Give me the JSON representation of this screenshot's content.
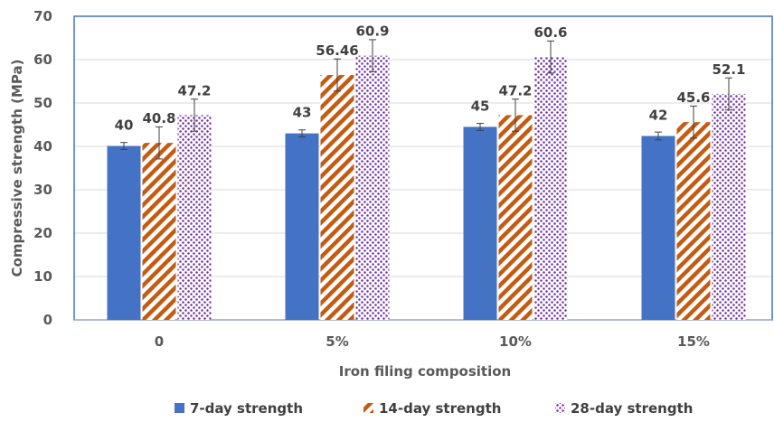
{
  "chart_data": {
    "type": "bar",
    "xlabel": "Iron filing composition",
    "ylabel": "Compressive strength (MPa)",
    "categories": [
      "0",
      "5%",
      "10%",
      "15%"
    ],
    "ylim": [
      0,
      70
    ],
    "yticks": [
      0,
      10,
      20,
      30,
      40,
      50,
      60,
      70
    ],
    "grid": true,
    "legend_position": "bottom",
    "series": [
      {
        "name": "7-day strength",
        "values": [
          40.1,
          43.0,
          44.5,
          42.4
        ],
        "labels": [
          "40",
          "43",
          "45",
          "42"
        ],
        "error": [
          0.8,
          0.8,
          0.8,
          0.9
        ],
        "color": "#4472c4",
        "pattern": "solid"
      },
      {
        "name": "14-day strength",
        "values": [
          40.8,
          56.46,
          47.2,
          45.6
        ],
        "labels": [
          "40.8",
          "56.46",
          "47.2",
          "45.6"
        ],
        "error": [
          3.7,
          3.7,
          3.7,
          3.7
        ],
        "color": "#c55a11",
        "pattern": "diagonal-stripes"
      },
      {
        "name": "28-day strength",
        "values": [
          47.2,
          60.9,
          60.6,
          52.1
        ],
        "labels": [
          "47.2",
          "60.9",
          "60.6",
          "52.1"
        ],
        "error": [
          3.7,
          3.7,
          3.7,
          3.7
        ],
        "color": "#7030a0",
        "pattern": "dots"
      }
    ]
  }
}
